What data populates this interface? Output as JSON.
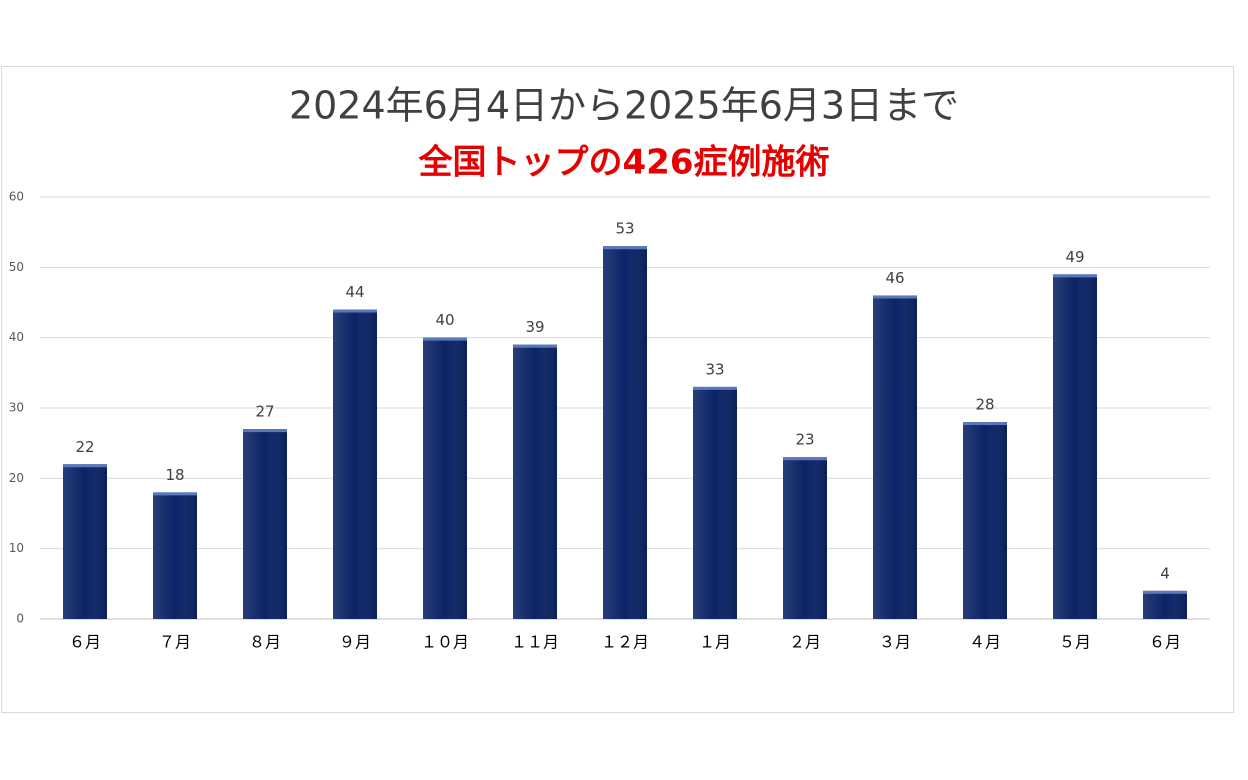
{
  "chart_data": {
    "type": "bar",
    "title": "2024年6月4日から2025年6月3日まで",
    "subtitle": "全国トップの426症例施術",
    "categories": [
      "６月",
      "７月",
      "８月",
      "９月",
      "１０月",
      "１１月",
      "１２月",
      "１月",
      "２月",
      "３月",
      "４月",
      "５月",
      "６月"
    ],
    "values": [
      22,
      18,
      27,
      44,
      40,
      39,
      53,
      33,
      23,
      46,
      28,
      49,
      4
    ],
    "color": "#0b2466",
    "ylim": [
      0,
      60
    ],
    "yticks": [
      0,
      10,
      20,
      30,
      40,
      50,
      60
    ],
    "grid": true
  }
}
